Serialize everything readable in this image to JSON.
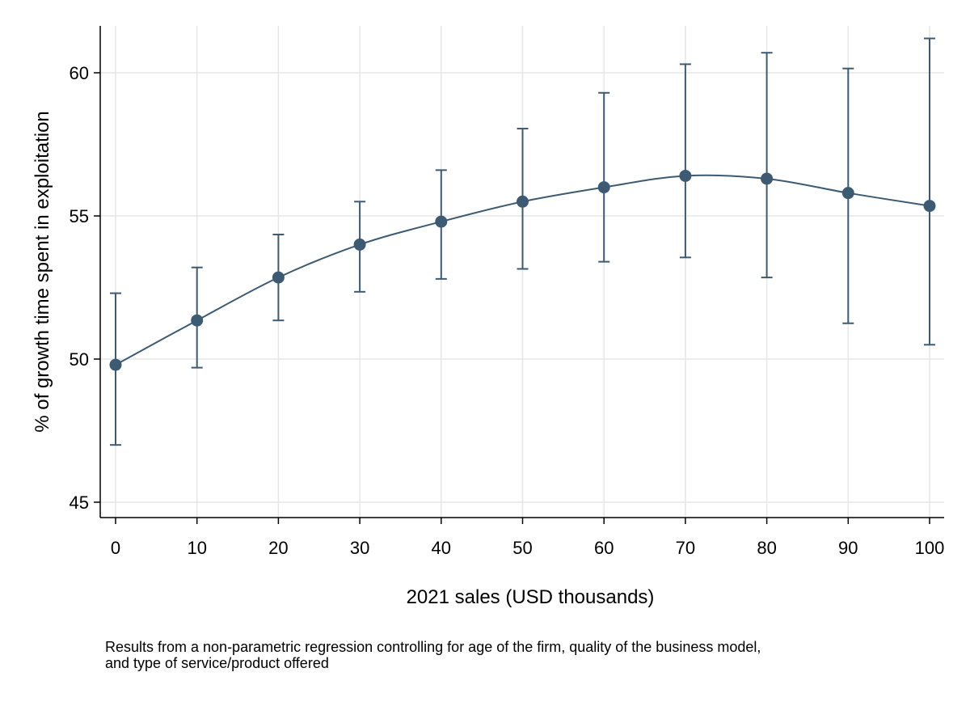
{
  "chart_data": {
    "type": "line",
    "xlabel": "2021 sales (USD thousands)",
    "ylabel": "% of growth time spent in exploitation",
    "xlim": [
      0,
      100
    ],
    "ylim": [
      45,
      61
    ],
    "x_ticks": [
      0,
      10,
      20,
      30,
      40,
      50,
      60,
      70,
      80,
      90,
      100
    ],
    "y_ticks": [
      45,
      50,
      55,
      60
    ],
    "grid": true,
    "series_color": "#3d5a73",
    "x": [
      0,
      10,
      20,
      30,
      40,
      50,
      60,
      70,
      80,
      90,
      100
    ],
    "y": [
      49.8,
      51.35,
      52.85,
      54.0,
      54.8,
      55.5,
      56.0,
      56.4,
      56.3,
      55.8,
      55.35
    ],
    "ci_lower": [
      47.0,
      49.7,
      51.35,
      52.35,
      52.8,
      53.15,
      53.4,
      53.55,
      52.85,
      51.25,
      50.5
    ],
    "ci_upper": [
      52.3,
      53.2,
      54.35,
      55.5,
      56.6,
      58.05,
      59.3,
      60.3,
      60.7,
      60.15,
      61.2
    ]
  },
  "note": {
    "line1": "Results from a non-parametric regression controlling for age of the firm, quality of the business model,",
    "line2": "and type of service/product offered"
  }
}
